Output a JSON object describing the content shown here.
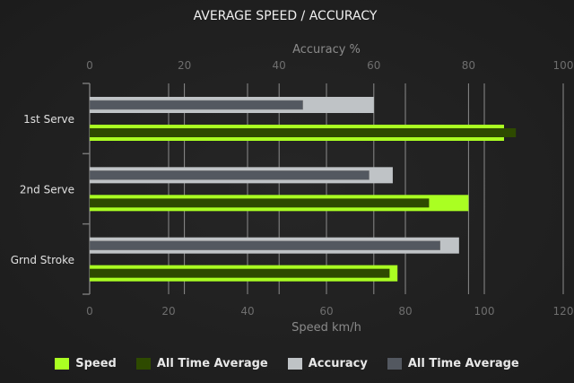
{
  "chart_data": {
    "type": "bar",
    "orientation": "horizontal",
    "title": "AVERAGE SPEED / ACCURACY",
    "categories": [
      "1st Serve",
      "2nd Serve",
      "Grnd Stroke"
    ],
    "top_axis": {
      "label": "Accuracy %",
      "range": [
        0,
        100
      ],
      "ticks": [
        "0",
        "20",
        "40",
        "60",
        "80",
        "100"
      ]
    },
    "bottom_axis": {
      "label": "Speed km/h",
      "range": [
        0,
        120
      ],
      "ticks": [
        "0",
        "20",
        "40",
        "60",
        "80",
        "100",
        "120"
      ]
    },
    "grid": true,
    "legend_position": "bottom",
    "series": [
      {
        "name": "Speed",
        "axis": "bottom",
        "values": [
          105,
          96,
          78
        ],
        "color": "#aaff22"
      },
      {
        "name": "All Time Average",
        "axis": "bottom",
        "values": [
          108,
          86,
          76
        ],
        "color": "#2e4a00"
      },
      {
        "name": "Accuracy",
        "axis": "top",
        "values": [
          60,
          64,
          78
        ],
        "color": "#bfc3c6"
      },
      {
        "name": "All Time Average",
        "axis": "top",
        "values": [
          45,
          59,
          74
        ],
        "color": "#535860"
      }
    ]
  }
}
